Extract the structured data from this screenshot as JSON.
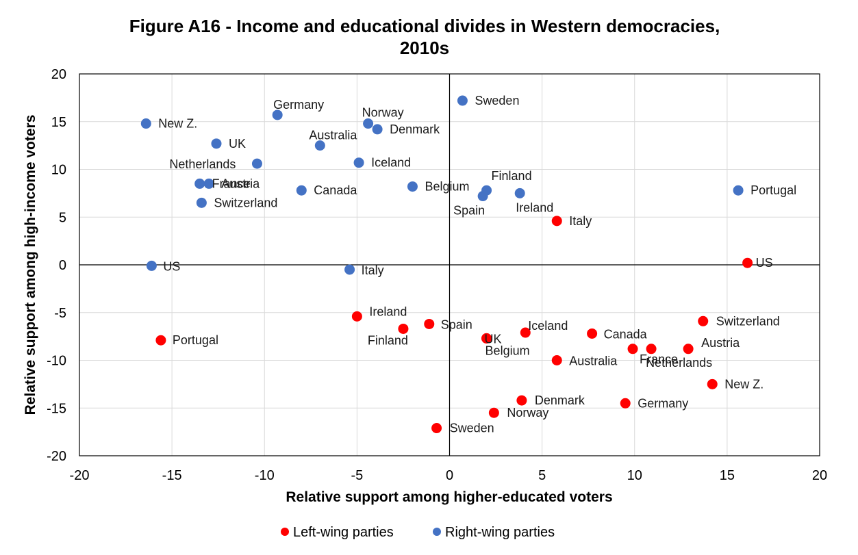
{
  "chart_data": {
    "type": "scatter",
    "title_line1": "Figure A16 - Income and educational divides in Western democracies,",
    "title_line2": "2010s",
    "xlabel": "Relative support among higher-educated voters",
    "ylabel": "Relative support among high-income voters",
    "xlim": [
      -20,
      20
    ],
    "ylim": [
      -20,
      20
    ],
    "xticks": [
      -20,
      -15,
      -10,
      -5,
      0,
      5,
      10,
      15,
      20
    ],
    "yticks": [
      -20,
      -15,
      -10,
      -5,
      0,
      5,
      10,
      15,
      20
    ],
    "grid": true,
    "legend_position": "bottom",
    "series": [
      {
        "name": "Left-wing parties",
        "color": "#ff0000",
        "points": [
          {
            "label": "US",
            "x": 16.1,
            "y": 0.2
          },
          {
            "label": "Portugal",
            "x": -15.6,
            "y": -7.9
          },
          {
            "label": "Italy",
            "x": 5.8,
            "y": 4.6
          },
          {
            "label": "Ireland",
            "x": -5.0,
            "y": -5.4
          },
          {
            "label": "Spain",
            "x": -1.1,
            "y": -6.2
          },
          {
            "label": "Finland",
            "x": -2.5,
            "y": -6.7
          },
          {
            "label": "UK",
            "x": 2.0,
            "y": -7.7
          },
          {
            "label": "Iceland",
            "x": 4.1,
            "y": -7.1
          },
          {
            "label": "Belgium",
            "x": 2.0,
            "y": -7.7
          },
          {
            "label": "Canada",
            "x": 7.7,
            "y": -7.2
          },
          {
            "label": "Switzerland",
            "x": 13.7,
            "y": -5.9
          },
          {
            "label": "Austria",
            "x": 12.9,
            "y": -8.8
          },
          {
            "label": "France",
            "x": 9.9,
            "y": -8.8
          },
          {
            "label": "Netherlands",
            "x": 10.9,
            "y": -8.8
          },
          {
            "label": "Australia",
            "x": 5.8,
            "y": -10.0
          },
          {
            "label": "New Z.",
            "x": 14.2,
            "y": -12.5
          },
          {
            "label": "Denmark",
            "x": 3.9,
            "y": -14.2
          },
          {
            "label": "Germany",
            "x": 9.5,
            "y": -14.5
          },
          {
            "label": "Norway",
            "x": 2.4,
            "y": -15.5
          },
          {
            "label": "Sweden",
            "x": -0.7,
            "y": -17.1
          }
        ]
      },
      {
        "name": "Right-wing parties",
        "color": "#4472c4",
        "points": [
          {
            "label": "Sweden",
            "x": 0.7,
            "y": 17.2
          },
          {
            "label": "Germany",
            "x": -9.3,
            "y": 15.7
          },
          {
            "label": "Norway",
            "x": -4.4,
            "y": 14.8
          },
          {
            "label": "Denmark",
            "x": -3.9,
            "y": 14.2
          },
          {
            "label": "New Z.",
            "x": -16.4,
            "y": 14.8
          },
          {
            "label": "UK",
            "x": -12.6,
            "y": 12.7
          },
          {
            "label": "Australia",
            "x": -7.0,
            "y": 12.5
          },
          {
            "label": "Netherlands",
            "x": -10.4,
            "y": 10.6
          },
          {
            "label": "Iceland",
            "x": -4.9,
            "y": 10.7
          },
          {
            "label": "France",
            "x": -13.5,
            "y": 8.5
          },
          {
            "label": "Austria",
            "x": -13.0,
            "y": 8.5
          },
          {
            "label": "Canada",
            "x": -8.0,
            "y": 7.8
          },
          {
            "label": "Belgium",
            "x": -2.0,
            "y": 8.2
          },
          {
            "label": "Finland",
            "x": 2.0,
            "y": 7.8
          },
          {
            "label": "Spain",
            "x": 1.8,
            "y": 7.2
          },
          {
            "label": "Ireland",
            "x": 3.8,
            "y": 7.5
          },
          {
            "label": "Switzerland",
            "x": -13.4,
            "y": 6.5
          },
          {
            "label": "Portugal",
            "x": 15.6,
            "y": 7.8
          },
          {
            "label": "US",
            "x": -16.1,
            "y": -0.1
          },
          {
            "label": "Italy",
            "x": -5.4,
            "y": -0.5
          }
        ]
      }
    ]
  }
}
